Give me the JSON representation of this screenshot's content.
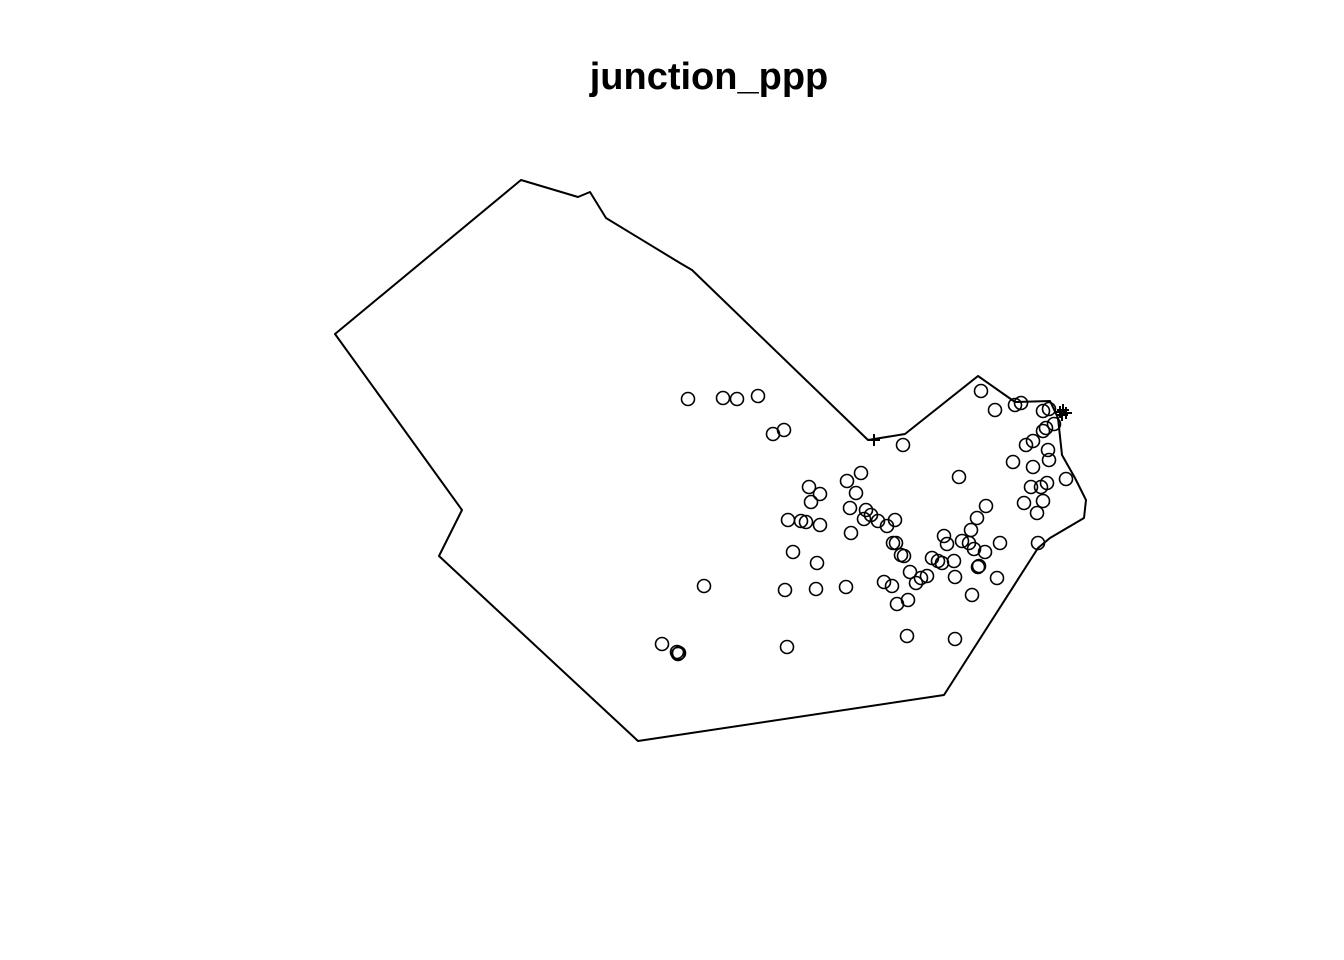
{
  "chart_data": {
    "type": "scatter",
    "title": "junction_ppp",
    "xlabel": "",
    "ylabel": "",
    "axes_shown": false,
    "grid": false,
    "legend": "none",
    "window_boundary": [
      [
        335,
        334
      ],
      [
        521,
        180
      ],
      [
        578,
        197
      ],
      [
        590,
        192
      ],
      [
        606,
        218
      ],
      [
        680,
        263
      ],
      [
        692,
        270
      ],
      [
        868,
        440
      ],
      [
        905,
        434
      ],
      [
        978,
        376
      ],
      [
        1015,
        402
      ],
      [
        1050,
        401
      ],
      [
        1058,
        418
      ],
      [
        1062,
        455
      ],
      [
        1075,
        478
      ],
      [
        1086,
        500
      ],
      [
        1084,
        518
      ],
      [
        1050,
        538
      ],
      [
        1038,
        548
      ],
      [
        944,
        695
      ],
      [
        638,
        741
      ],
      [
        439,
        556
      ],
      [
        462,
        510
      ]
    ],
    "series": [
      {
        "marker": "circle",
        "x": [
          688,
          723,
          737,
          758,
          784,
          773,
          981,
          995,
          1015,
          1021,
          1043,
          1049,
          1054,
          1046,
          1043,
          1033,
          1026,
          1048,
          1049,
          1013,
          1033,
          1031,
          1047,
          1041,
          1066,
          1043,
          1024,
          1037,
          1038,
          903,
          959,
          861,
          847,
          856,
          809,
          820,
          811,
          850,
          866,
          871,
          864,
          878,
          887,
          895,
          893,
          851,
          788,
          801,
          806,
          820,
          944,
          947,
          962,
          969,
          971,
          977,
          986,
          1000,
          974,
          985,
          979,
          932,
          938,
          942,
          954,
          955,
          978,
          997,
          972,
          955,
          896,
          901,
          904,
          910,
          916,
          921,
          927,
          884,
          892,
          897,
          908,
          907,
          793,
          817,
          846,
          816,
          785,
          787,
          704,
          662,
          677,
          678,
          679
        ],
        "y": [
          399,
          398,
          399,
          396,
          430,
          434,
          391,
          410,
          405,
          403,
          411,
          409,
          424,
          428,
          431,
          441,
          445,
          450,
          460,
          462,
          467,
          487,
          483,
          487,
          479,
          501,
          503,
          513,
          543,
          445,
          477,
          473,
          481,
          493,
          487,
          494,
          502,
          508,
          510,
          515,
          519,
          521,
          526,
          520,
          543,
          533,
          520,
          521,
          522,
          525,
          536,
          544,
          541,
          543,
          530,
          518,
          506,
          543,
          549,
          552,
          566,
          558,
          561,
          563,
          561,
          577,
          567,
          578,
          595,
          639,
          543,
          555,
          556,
          572,
          583,
          578,
          576,
          582,
          586,
          604,
          600,
          636,
          552,
          563,
          587,
          589,
          590,
          647,
          586,
          644,
          652,
          654,
          653
        ]
      },
      {
        "marker": "plus",
        "x": [
          874,
          1060,
          1063,
          1066,
          1062
        ],
        "y": [
          440,
          412,
          410,
          413,
          415
        ]
      }
    ]
  }
}
